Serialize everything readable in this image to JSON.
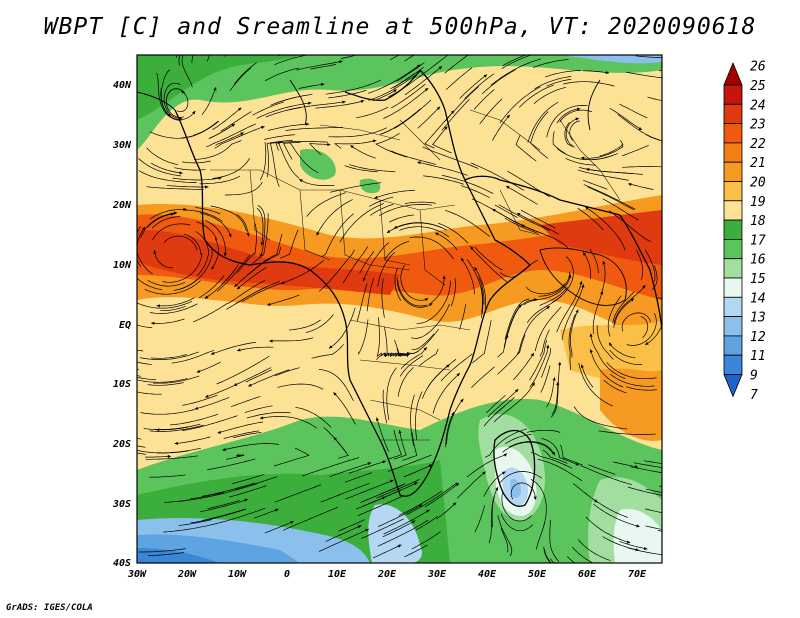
{
  "title": "WBPT [C] and Sreamline at 500hPa, VT: 2020090618",
  "credit": "GrADS: IGES/COLA",
  "map": {
    "lon_range": [
      -30,
      75
    ],
    "lat_range": [
      -40,
      45
    ],
    "lat_labels": [
      "40N",
      "30N",
      "20N",
      "10N",
      "EQ",
      "10S",
      "20S",
      "30S",
      "40S"
    ],
    "lon_labels": [
      "30W",
      "20W",
      "10W",
      "0",
      "10E",
      "20E",
      "30E",
      "40E",
      "50E",
      "60E",
      "70E"
    ]
  },
  "colorbar": {
    "labels": [
      "26",
      "25",
      "24",
      "23",
      "22",
      "21",
      "20",
      "19",
      "18",
      "17",
      "16",
      "15",
      "14",
      "13",
      "12",
      "11",
      "9",
      "7"
    ],
    "colors": [
      "#a50000",
      "#c8140f",
      "#e03a10",
      "#ef5a10",
      "#f47d14",
      "#f79a22",
      "#fbbf48",
      "#fde296",
      "#3cae3c",
      "#5cc45c",
      "#a2dea0",
      "#e8f8f0",
      "#b4d8f4",
      "#8cc0ec",
      "#5ea4e2",
      "#3a86d8",
      "#1e64c8"
    ]
  }
}
